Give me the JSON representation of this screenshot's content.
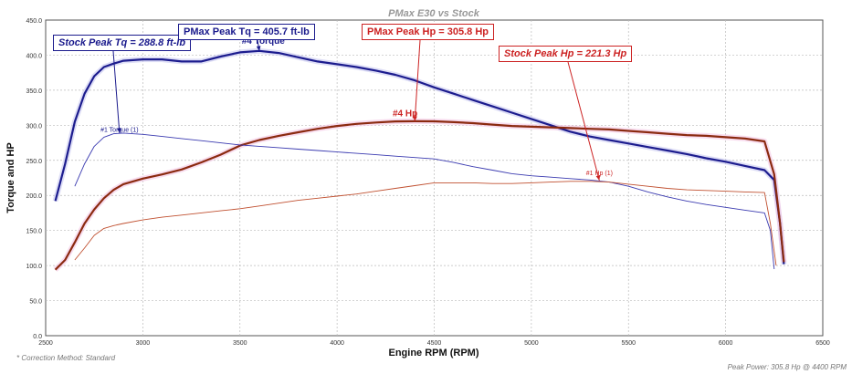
{
  "chart_data": {
    "type": "line",
    "title": "PMax E30 vs Stock",
    "xlabel": "Engine RPM (RPM)",
    "ylabel": "Torque and HP",
    "xlim": [
      2500,
      6500
    ],
    "ylim": [
      0,
      450
    ],
    "xticks": [
      2500,
      3000,
      3500,
      4000,
      4500,
      5000,
      5500,
      6000,
      6500
    ],
    "yticks": [
      0,
      50,
      100,
      150,
      200,
      250,
      300,
      350,
      400,
      450
    ],
    "ytick_labels": [
      "0.0",
      "50.0",
      "100.0",
      "150.0",
      "200.0",
      "250.0",
      "300.0",
      "350.0",
      "400.0",
      "450.0"
    ],
    "grid": true,
    "series": [
      {
        "name": "#4 Torque",
        "color": "#1c1c8e",
        "width": 2.2,
        "x": [
          2550,
          2600,
          2650,
          2700,
          2750,
          2800,
          2850,
          2900,
          3000,
          3100,
          3200,
          3300,
          3400,
          3500,
          3600,
          3700,
          3800,
          3900,
          4000,
          4100,
          4200,
          4300,
          4400,
          4500,
          4600,
          4700,
          4800,
          4900,
          5000,
          5100,
          5200,
          5300,
          5400,
          5500,
          5600,
          5700,
          5800,
          5900,
          6000,
          6100,
          6200,
          6250,
          6280,
          6300
        ],
        "y": [
          192,
          245,
          305,
          345,
          370,
          383,
          388,
          392,
          394,
          394,
          391,
          391,
          398,
          404,
          406,
          403,
          397,
          391,
          387,
          383,
          378,
          372,
          364,
          354,
          345,
          336,
          327,
          318,
          309,
          300,
          291,
          284,
          279,
          274,
          269,
          264,
          259,
          253,
          248,
          242,
          236,
          222,
          160,
          102
        ]
      },
      {
        "name": "#4 Hp",
        "color": "#8b2a10",
        "width": 2.2,
        "x": [
          2550,
          2600,
          2650,
          2700,
          2750,
          2800,
          2850,
          2900,
          3000,
          3100,
          3200,
          3300,
          3400,
          3500,
          3600,
          3700,
          3800,
          3900,
          4000,
          4100,
          4200,
          4300,
          4400,
          4500,
          4600,
          4700,
          4800,
          4900,
          5000,
          5100,
          5200,
          5300,
          5400,
          5500,
          5600,
          5700,
          5800,
          5900,
          6000,
          6100,
          6200,
          6250,
          6280,
          6300
        ],
        "y": [
          94,
          108,
          133,
          160,
          180,
          196,
          208,
          216,
          224,
          230,
          237,
          247,
          258,
          271,
          279,
          285,
          290,
          295,
          299,
          302,
          304,
          305.5,
          305.8,
          305.6,
          304.5,
          303,
          301,
          299,
          298,
          297,
          296,
          295,
          294,
          292,
          290,
          288,
          286,
          285,
          283,
          281,
          277,
          230,
          160,
          105
        ]
      },
      {
        "name": "#1 Torque (1)",
        "color": "#3a3ab0",
        "width": 0.9,
        "x": [
          2650,
          2700,
          2750,
          2800,
          2850,
          2900,
          3000,
          3100,
          3200,
          3300,
          3400,
          3500,
          3600,
          3700,
          3800,
          3900,
          4000,
          4100,
          4200,
          4300,
          4400,
          4500,
          4600,
          4700,
          4800,
          4900,
          5000,
          5100,
          5200,
          5300,
          5400,
          5500,
          5600,
          5700,
          5800,
          5900,
          6000,
          6100,
          6200,
          6230,
          6250
        ],
        "y": [
          213,
          245,
          270,
          283,
          288,
          288.8,
          287,
          284,
          281,
          278,
          275,
          272,
          270,
          268,
          266,
          264,
          262,
          260,
          258,
          256,
          254,
          252,
          247,
          241,
          236,
          231,
          228,
          226,
          224,
          222,
          219,
          213,
          205,
          198,
          192,
          187,
          183,
          179,
          175,
          150,
          95
        ]
      },
      {
        "name": "#1 Hp (1)",
        "color": "#c05030",
        "width": 0.9,
        "x": [
          2650,
          2700,
          2750,
          2800,
          2850,
          2900,
          3000,
          3100,
          3200,
          3300,
          3400,
          3500,
          3600,
          3700,
          3800,
          3900,
          4000,
          4100,
          4200,
          4300,
          4400,
          4500,
          4600,
          4700,
          4800,
          4900,
          5000,
          5100,
          5200,
          5300,
          5400,
          5500,
          5600,
          5700,
          5800,
          5900,
          6000,
          6100,
          6200,
          6230,
          6260
        ],
        "y": [
          108,
          125,
          143,
          153,
          157,
          160,
          165,
          169,
          172,
          175,
          178,
          181,
          185,
          189,
          193,
          196,
          199,
          202,
          206,
          210,
          214,
          218,
          218,
          218,
          217,
          217,
          218,
          219,
          220,
          220,
          219,
          216,
          213,
          210,
          208,
          207,
          206,
          205,
          204,
          160,
          100
        ]
      }
    ],
    "annotations": [
      {
        "text": "Stock Peak Tq = 288.8 ft-lb",
        "color": "#1a1a8c",
        "italic": true,
        "x": 2880,
        "y": 288.8
      },
      {
        "text": "PMax Peak Tq = 405.7 ft-lb",
        "color": "#1a1a8c",
        "italic": false,
        "x": 3600,
        "y": 405.7
      },
      {
        "text": "PMax Peak Hp = 305.8 Hp",
        "color": "#cc2222",
        "italic": false,
        "x": 4400,
        "y": 305.8
      },
      {
        "text": "Stock Peak Hp = 221.3 Hp",
        "color": "#cc2222",
        "italic": true,
        "x": 5350,
        "y": 221.3
      }
    ],
    "curve_labels": [
      {
        "text": "#4 Torque",
        "color": "#1a1a8c",
        "size": 10,
        "bold": true
      },
      {
        "text": "#4 Hp",
        "color": "#cc2222",
        "size": 10,
        "bold": true
      },
      {
        "text": "#1 Torque (1)",
        "color": "#1a1a8c",
        "size": 7,
        "bold": false
      },
      {
        "text": "#1 Hp (1)",
        "color": "#cc2222",
        "size": 7,
        "bold": false
      }
    ]
  },
  "footer": {
    "correction": "* Correction Method: Standard",
    "peak_power": "Peak Power: 305.8 Hp @ 4400 RPM"
  }
}
